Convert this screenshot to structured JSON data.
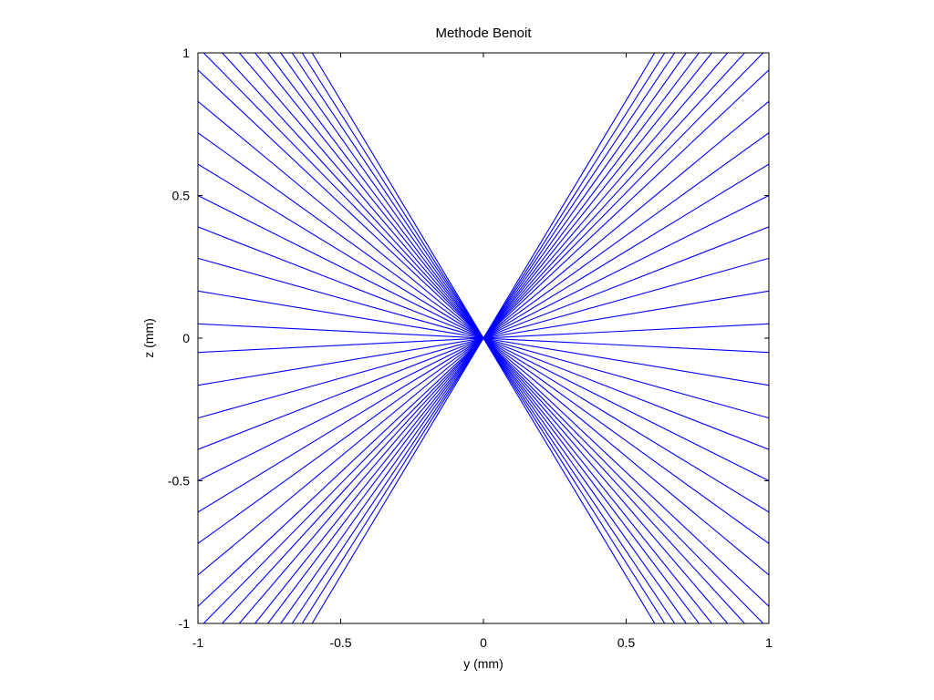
{
  "chart_data": {
    "type": "line",
    "title": "Methode Benoit",
    "xlabel": "y (mm)",
    "ylabel": "z (mm)",
    "xlim": [
      -1,
      1
    ],
    "ylim": [
      -1,
      1
    ],
    "xticks": [
      -1,
      -0.5,
      0,
      0.5,
      1
    ],
    "yticks": [
      -1,
      -0.5,
      0,
      0.5,
      1
    ],
    "xtick_labels": [
      "-1",
      "-0.5",
      "0",
      "0.5",
      "1"
    ],
    "ytick_labels": [
      "-1",
      "-0.5",
      "0",
      "0.5",
      "1"
    ],
    "grid": false,
    "legend": "none",
    "line_color": "#0000ff",
    "focus": [
      0,
      0
    ],
    "series": [
      {
        "x": [
          -1,
          1
        ],
        "y": [
          0.05,
          -0.05
        ]
      },
      {
        "x": [
          -1,
          1
        ],
        "y": [
          0.165,
          -0.165
        ]
      },
      {
        "x": [
          -1,
          1
        ],
        "y": [
          0.28,
          -0.28
        ]
      },
      {
        "x": [
          -1,
          1
        ],
        "y": [
          0.39,
          -0.39
        ]
      },
      {
        "x": [
          -1,
          1
        ],
        "y": [
          0.5,
          -0.5
        ]
      },
      {
        "x": [
          -1,
          1
        ],
        "y": [
          0.61,
          -0.61
        ]
      },
      {
        "x": [
          -1,
          1
        ],
        "y": [
          0.72,
          -0.72
        ]
      },
      {
        "x": [
          -1,
          1
        ],
        "y": [
          0.83,
          -0.83
        ]
      },
      {
        "x": [
          -1,
          1
        ],
        "y": [
          0.94,
          -0.94
        ]
      },
      {
        "x": [
          -0.98,
          0.98
        ],
        "y": [
          1,
          -1
        ]
      },
      {
        "x": [
          -0.915,
          0.915
        ],
        "y": [
          1,
          -1
        ]
      },
      {
        "x": [
          -0.855,
          0.855
        ],
        "y": [
          1,
          -1
        ]
      },
      {
        "x": [
          -0.8,
          0.8
        ],
        "y": [
          1,
          -1
        ]
      },
      {
        "x": [
          -0.755,
          0.755
        ],
        "y": [
          1,
          -1
        ]
      },
      {
        "x": [
          -0.71,
          0.71
        ],
        "y": [
          1,
          -1
        ]
      },
      {
        "x": [
          -0.67,
          0.67
        ],
        "y": [
          1,
          -1
        ]
      },
      {
        "x": [
          -0.635,
          0.635
        ],
        "y": [
          1,
          -1
        ]
      },
      {
        "x": [
          -0.6,
          0.6
        ],
        "y": [
          1,
          -1
        ]
      },
      {
        "x": [
          -1,
          1
        ],
        "y": [
          -0.05,
          0.05
        ]
      },
      {
        "x": [
          -1,
          1
        ],
        "y": [
          -0.165,
          0.165
        ]
      },
      {
        "x": [
          -1,
          1
        ],
        "y": [
          -0.28,
          0.28
        ]
      },
      {
        "x": [
          -1,
          1
        ],
        "y": [
          -0.39,
          0.39
        ]
      },
      {
        "x": [
          -1,
          1
        ],
        "y": [
          -0.5,
          0.5
        ]
      },
      {
        "x": [
          -1,
          1
        ],
        "y": [
          -0.61,
          0.61
        ]
      },
      {
        "x": [
          -1,
          1
        ],
        "y": [
          -0.72,
          0.72
        ]
      },
      {
        "x": [
          -1,
          1
        ],
        "y": [
          -0.83,
          0.83
        ]
      },
      {
        "x": [
          -1,
          1
        ],
        "y": [
          -0.94,
          0.94
        ]
      },
      {
        "x": [
          -0.98,
          0.98
        ],
        "y": [
          -1,
          1
        ]
      },
      {
        "x": [
          -0.915,
          0.915
        ],
        "y": [
          -1,
          1
        ]
      },
      {
        "x": [
          -0.855,
          0.855
        ],
        "y": [
          -1,
          1
        ]
      },
      {
        "x": [
          -0.8,
          0.8
        ],
        "y": [
          -1,
          1
        ]
      },
      {
        "x": [
          -0.755,
          0.755
        ],
        "y": [
          -1,
          1
        ]
      },
      {
        "x": [
          -0.71,
          0.71
        ],
        "y": [
          -1,
          1
        ]
      },
      {
        "x": [
          -0.67,
          0.67
        ],
        "y": [
          -1,
          1
        ]
      },
      {
        "x": [
          -0.635,
          0.635
        ],
        "y": [
          -1,
          1
        ]
      },
      {
        "x": [
          -0.6,
          0.6
        ],
        "y": [
          -1,
          1
        ]
      }
    ]
  }
}
